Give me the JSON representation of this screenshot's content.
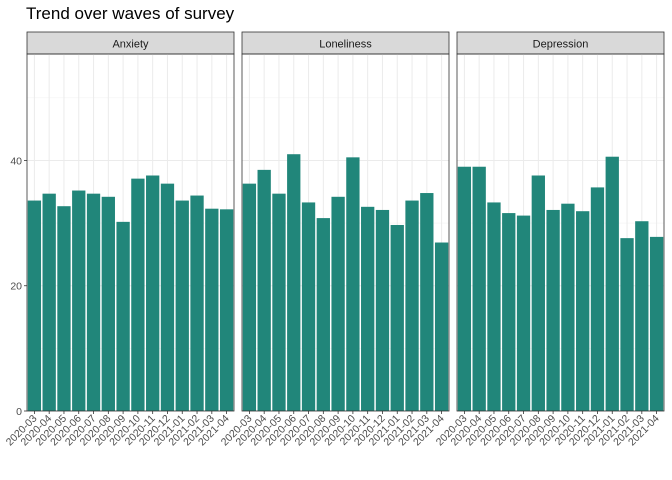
{
  "chart_data": {
    "type": "bar",
    "title": "Trend over waves of survey",
    "xlabel": "",
    "ylabel": "",
    "ylim": [
      0,
      57
    ],
    "yticks": [
      0,
      20,
      40
    ],
    "grid": true,
    "bar_color": "#21867A",
    "strip_fill": "#D9D9D9",
    "categories": [
      "2020-03",
      "2020-04",
      "2020-05",
      "2020-06",
      "2020-07",
      "2020-08",
      "2020-09",
      "2020-10",
      "2020-11",
      "2020-12",
      "2021-01",
      "2021-02",
      "2021-03",
      "2021-04"
    ],
    "panels": [
      {
        "name": "Anxiety",
        "values": [
          33.6,
          34.7,
          32.7,
          35.2,
          34.7,
          34.2,
          30.2,
          37.1,
          37.6,
          36.3,
          33.6,
          34.4,
          32.3,
          32.2
        ]
      },
      {
        "name": "Loneliness",
        "values": [
          36.3,
          38.5,
          34.7,
          41.0,
          33.3,
          30.8,
          34.2,
          40.5,
          32.6,
          32.1,
          29.7,
          33.6,
          34.8,
          26.9
        ]
      },
      {
        "name": "Depression",
        "values": [
          39.0,
          39.0,
          33.3,
          31.6,
          31.2,
          37.6,
          32.1,
          33.1,
          31.9,
          35.7,
          40.6,
          27.6,
          30.3,
          27.8
        ]
      }
    ]
  }
}
